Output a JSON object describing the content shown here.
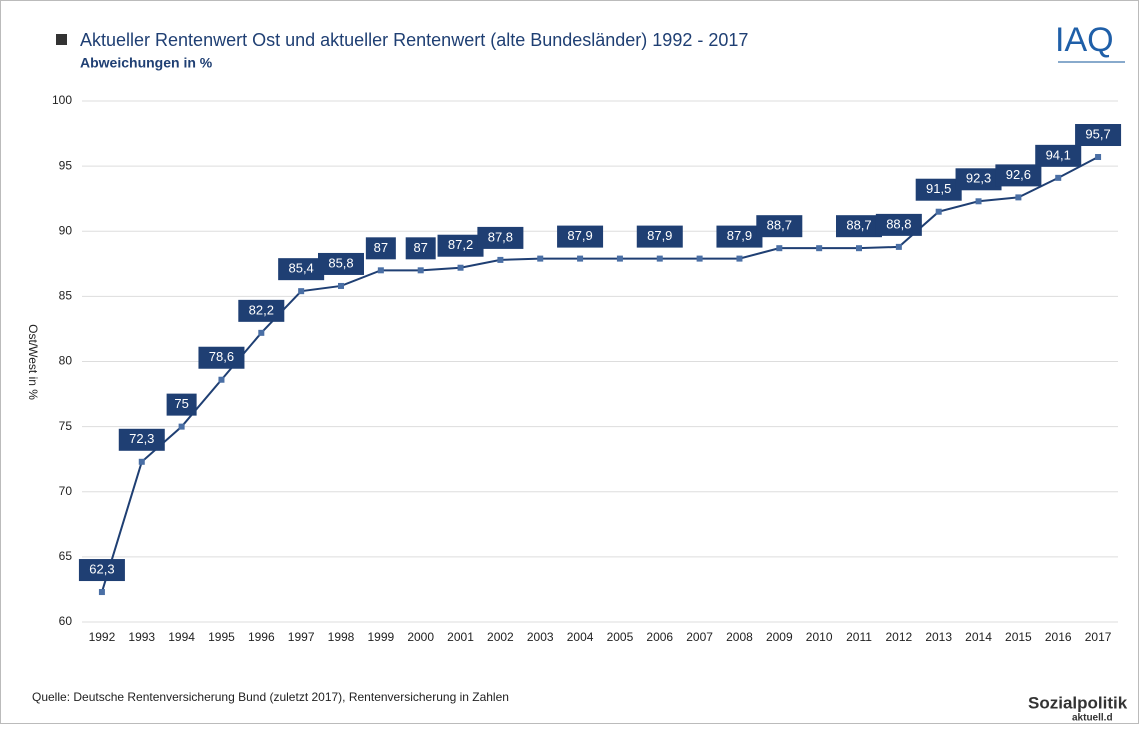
{
  "chart_data": {
    "type": "line",
    "title": "Aktueller Rentenwert Ost und aktueller Rentenwert (alte Bundesländer) 1992 - 2017",
    "subtitle": "Abweichungen in %",
    "y_label": "Ost/West in %",
    "source": "Quelle: Deutsche Rentenversicherung  Bund (zuletzt 2017), Rentenversicherung in Zahlen",
    "logo_top": "IAQ",
    "logo_bottom": "Sozialpolitik",
    "logo_bottom_sub": "aktuell.d",
    "categories": [
      "1992",
      "1993",
      "1994",
      "1995",
      "1996",
      "1997",
      "1998",
      "1999",
      "2000",
      "2001",
      "2002",
      "2003",
      "2004",
      "2005",
      "2006",
      "2007",
      "2008",
      "2009",
      "2010",
      "2011",
      "2012",
      "2013",
      "2014",
      "2015",
      "2016",
      "2017"
    ],
    "values": [
      62.3,
      72.3,
      75,
      78.6,
      82.2,
      85.4,
      85.8,
      87,
      87,
      87.2,
      87.8,
      87.9,
      87.9,
      87.9,
      87.9,
      87.9,
      87.9,
      88.7,
      88.7,
      88.7,
      88.8,
      91.5,
      92.3,
      92.6,
      94.1,
      95.7
    ],
    "value_labels": [
      "62,3",
      "72,3",
      "75",
      "78,6",
      "82,2",
      "85,4",
      "85,8",
      "87",
      "87",
      "87,2",
      "87,8",
      null,
      "87,9",
      null,
      "87,9",
      null,
      "87,9",
      "88,7",
      null,
      "88,7",
      "88,8",
      "91,5",
      "92,3",
      "92,6",
      "94,1",
      "95,7"
    ],
    "color": "#1f3f73",
    "ylim": [
      60,
      100
    ],
    "yticks": [
      60,
      65,
      70,
      75,
      80,
      85,
      90,
      95,
      100
    ],
    "grid": true
  }
}
